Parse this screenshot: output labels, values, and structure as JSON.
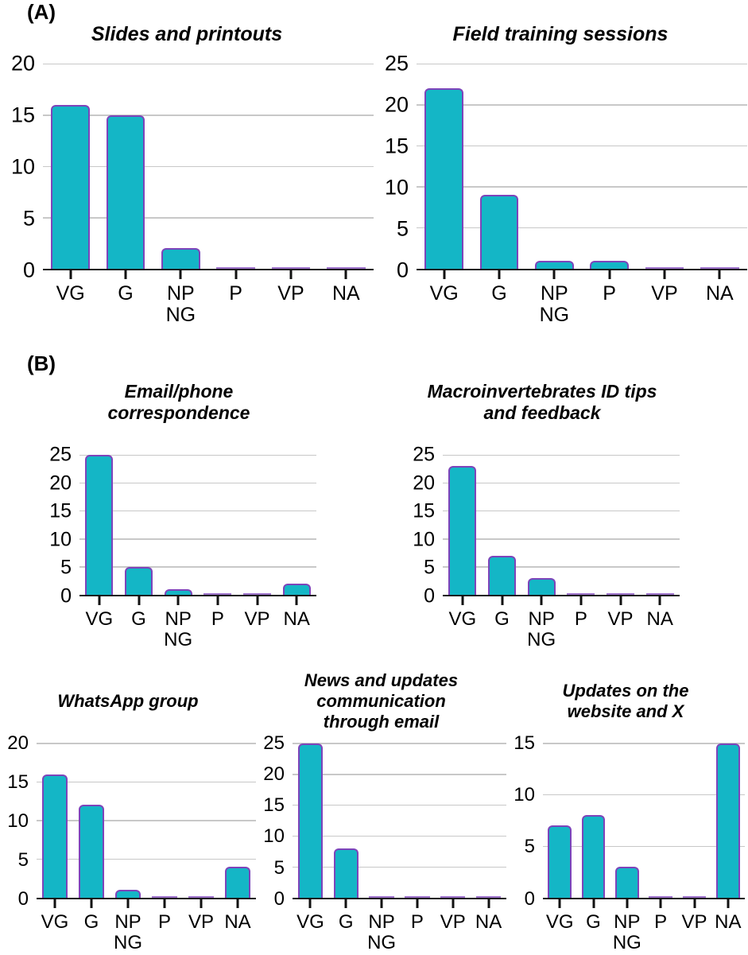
{
  "figure": {
    "panel_a_label": "(A)",
    "panel_b_label": "(B)"
  },
  "colors": {
    "bar_fill": "#14b6c6",
    "bar_stroke": "#7d44ba",
    "gridline": "#c8c8c8",
    "axis": "#1a1a1a",
    "text": "#000000",
    "background": "#ffffff"
  },
  "categories_display": [
    [
      "VG"
    ],
    [
      "G"
    ],
    [
      "NP",
      "NG"
    ],
    [
      "P"
    ],
    [
      "VP"
    ],
    [
      "NA"
    ]
  ],
  "chart_data": [
    {
      "type": "bar",
      "panel": "A",
      "title": "Slides and printouts",
      "title_lines": [
        "Slides and printouts"
      ],
      "categories": [
        "VG",
        "G",
        "NP NG",
        "P",
        "VP",
        "NA"
      ],
      "values": [
        16,
        15,
        2,
        0,
        0,
        0
      ],
      "ylim": [
        0,
        20
      ],
      "yticks": [
        0,
        5,
        10,
        15,
        20
      ],
      "xlabel": "",
      "ylabel": "",
      "grid": true,
      "legend": "none"
    },
    {
      "type": "bar",
      "panel": "A",
      "title": "Field training sessions",
      "title_lines": [
        "Field training sessions"
      ],
      "categories": [
        "VG",
        "G",
        "NP NG",
        "P",
        "VP",
        "NA"
      ],
      "values": [
        22,
        9,
        1,
        1,
        0,
        0
      ],
      "ylim": [
        0,
        25
      ],
      "yticks": [
        0,
        5,
        10,
        15,
        20,
        25
      ],
      "xlabel": "",
      "ylabel": "",
      "grid": true,
      "legend": "none"
    },
    {
      "type": "bar",
      "panel": "B",
      "title": "Email/phone correspondence",
      "title_lines": [
        "Email/phone",
        "correspondence"
      ],
      "categories": [
        "VG",
        "G",
        "NP NG",
        "P",
        "VP",
        "NA"
      ],
      "values": [
        25,
        5,
        1,
        0,
        0,
        2
      ],
      "ylim": [
        0,
        25
      ],
      "yticks": [
        0,
        5,
        10,
        15,
        20,
        25
      ],
      "xlabel": "",
      "ylabel": "",
      "grid": true,
      "legend": "none"
    },
    {
      "type": "bar",
      "panel": "B",
      "title": "Macroinvertebrates ID tips and feedback",
      "title_lines": [
        "Macroinvertebrates ID tips",
        "and feedback"
      ],
      "categories": [
        "VG",
        "G",
        "NP NG",
        "P",
        "VP",
        "NA"
      ],
      "values": [
        23,
        7,
        3,
        0,
        0,
        0
      ],
      "ylim": [
        0,
        25
      ],
      "yticks": [
        0,
        5,
        10,
        15,
        20,
        25
      ],
      "xlabel": "",
      "ylabel": "",
      "grid": true,
      "legend": "none"
    },
    {
      "type": "bar",
      "panel": "B",
      "title": "WhatsApp group",
      "title_lines": [
        "WhatsApp group"
      ],
      "categories": [
        "VG",
        "G",
        "NP NG",
        "P",
        "VP",
        "NA"
      ],
      "values": [
        16,
        12,
        1,
        0,
        0,
        4
      ],
      "ylim": [
        0,
        20
      ],
      "yticks": [
        0,
        5,
        10,
        15,
        20
      ],
      "xlabel": "",
      "ylabel": "",
      "grid": true,
      "legend": "none"
    },
    {
      "type": "bar",
      "panel": "B",
      "title": "News and updates communication through email",
      "title_lines": [
        "News and updates",
        "communication",
        "through email"
      ],
      "categories": [
        "VG",
        "G",
        "NP NG",
        "P",
        "VP",
        "NA"
      ],
      "values": [
        25,
        8,
        0,
        0,
        0,
        0
      ],
      "ylim": [
        0,
        25
      ],
      "yticks": [
        0,
        5,
        10,
        15,
        20,
        25
      ],
      "xlabel": "",
      "ylabel": "",
      "grid": true,
      "legend": "none"
    },
    {
      "type": "bar",
      "panel": "B",
      "title": "Updates on the website and X",
      "title_lines": [
        "Updates on the",
        "website and X"
      ],
      "categories": [
        "VG",
        "G",
        "NP NG",
        "P",
        "VP",
        "NA"
      ],
      "values": [
        7,
        8,
        3,
        0,
        0,
        15
      ],
      "ylim": [
        0,
        15
      ],
      "yticks": [
        0,
        5,
        10,
        15
      ],
      "xlabel": "",
      "ylabel": "",
      "grid": true,
      "legend": "none"
    }
  ]
}
